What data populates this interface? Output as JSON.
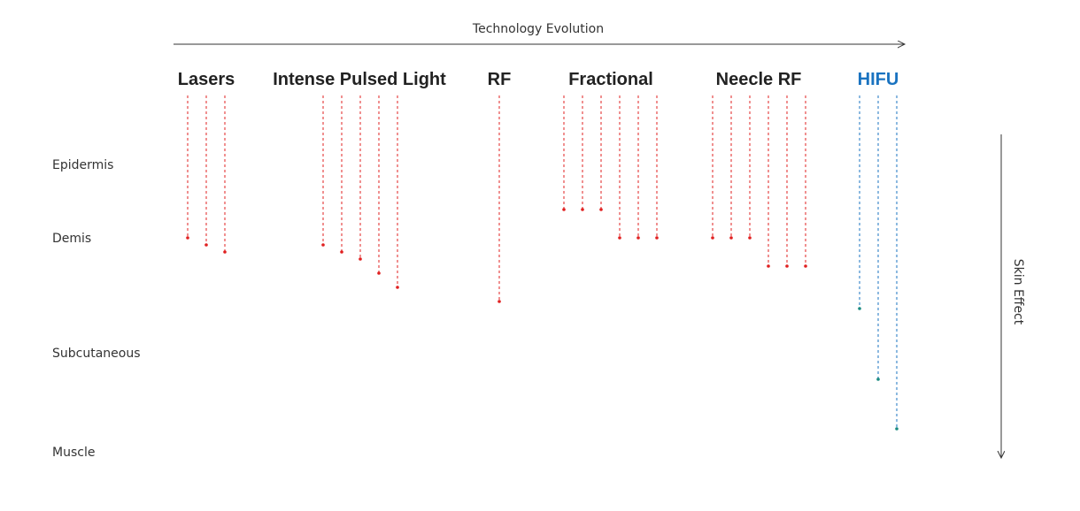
{
  "title": "Technology Evolution",
  "side_axis_label": "Skin Effect",
  "layers": [
    "Epidermis",
    "Demis",
    "Subcutaneous",
    "Muscle"
  ],
  "colors": {
    "standard": "#e02020",
    "hifu": "#1a73c0",
    "hifu_dot": "#1a8a80",
    "text": "#222222"
  },
  "technologies": [
    {
      "name": "Lasers",
      "highlight": false
    },
    {
      "name": "Intense Pulsed Light",
      "highlight": false
    },
    {
      "name": "RF",
      "highlight": false
    },
    {
      "name": "Fractional",
      "highlight": false
    },
    {
      "name": "Neecle RF",
      "highlight": false
    },
    {
      "name": "HIFU",
      "highlight": true
    }
  ]
}
